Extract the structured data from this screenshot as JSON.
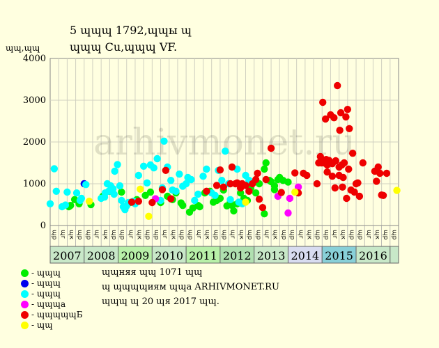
{
  "title_line1": "5 ɰɰɰ 1792,ɰɰы ɰ",
  "title_line2": "ɰɰɰ Cu,ɰɰɰ VF.",
  "watermark": "arhivmonet.ru",
  "legend": [
    {
      "label": "- ɰɰɰ",
      "color": "#00ee00"
    },
    {
      "label": "- ɰɰɰ",
      "color": "#0000ee"
    },
    {
      "label": "- ɰɰɰ",
      "color": "#00ffff"
    },
    {
      "label": "- ɰɰɰa",
      "color": "#ff00ff"
    },
    {
      "label": "- ɰɰɰɰɰБ",
      "color": "#ee0000"
    },
    {
      "label": "- ɰɰ",
      "color": "#ffff00"
    }
  ],
  "notes": [
    "ɰɰняя ɰɰ 1071 ɰɰ",
    "ɰ ɰɰɰɰиям ɰɰa ARHIVMONET.RU",
    "ɰɰɰ ɰ 20 ɰя 2017 ɰɰ."
  ],
  "chart_data": {
    "type": "scatter",
    "ylabel": "ɰɰ,ɰɰ",
    "ylim": [
      0,
      4000
    ],
    "yticks": [
      0,
      1000,
      2000,
      3000,
      4000
    ],
    "xlim": [
      2007,
      2017.25
    ],
    "year_labels": [
      "2007",
      "2008",
      "2009",
      "2010",
      "2011",
      "2012",
      "2013",
      "2014",
      "2015",
      "2016"
    ],
    "year_colors": [
      "#c8e8c8",
      "#c8e8c8",
      "#b8f0a8",
      "#c8e8c8",
      "#b8f0a8",
      "#b0e0b0",
      "#c8e8c8",
      "#d8dcf0",
      "#88d0d8",
      "#c8e8c8"
    ],
    "quarter_labels": [
      "ɰр",
      "ɰr",
      "ɰк",
      "ɰр"
    ],
    "grid": true,
    "series": [
      {
        "name": "- ɰɰɰ",
        "color": "#00ee00",
        "points": [
          [
            2007.55,
            450
          ],
          [
            2007.6,
            480
          ],
          [
            2007.72,
            620
          ],
          [
            2007.85,
            520
          ],
          [
            2008.2,
            500
          ],
          [
            2008.55,
            700
          ],
          [
            2008.75,
            820
          ],
          [
            2009.1,
            800
          ],
          [
            2009.35,
            550
          ],
          [
            2009.55,
            620
          ],
          [
            2009.8,
            720
          ],
          [
            2009.95,
            800
          ],
          [
            2010.25,
            550
          ],
          [
            2010.45,
            700
          ],
          [
            2010.6,
            620
          ],
          [
            2010.7,
            780
          ],
          [
            2010.85,
            540
          ],
          [
            2010.9,
            480
          ],
          [
            2011.1,
            320
          ],
          [
            2011.2,
            420
          ],
          [
            2011.35,
            480
          ],
          [
            2011.4,
            450
          ],
          [
            2011.55,
            780
          ],
          [
            2011.7,
            820
          ],
          [
            2011.8,
            560
          ],
          [
            2011.9,
            600
          ],
          [
            2012.0,
            650
          ],
          [
            2012.1,
            850
          ],
          [
            2012.2,
            470
          ],
          [
            2012.3,
            560
          ],
          [
            2012.35,
            480
          ],
          [
            2012.4,
            350
          ],
          [
            2012.5,
            520
          ],
          [
            2012.6,
            780
          ],
          [
            2012.7,
            650
          ],
          [
            2012.8,
            600
          ],
          [
            2012.9,
            900
          ],
          [
            2013.05,
            780
          ],
          [
            2013.15,
            1000
          ],
          [
            2013.3,
            1350
          ],
          [
            2013.35,
            1500
          ],
          [
            2013.45,
            1080
          ],
          [
            2013.5,
            1050
          ],
          [
            2013.6,
            950
          ],
          [
            2013.7,
            1100
          ],
          [
            2013.75,
            1150
          ],
          [
            2013.85,
            1080
          ],
          [
            2014.0,
            1040
          ],
          [
            2013.3,
            280
          ],
          [
            2013.6,
            860
          ]
        ]
      },
      {
        "name": "- ɰɰɰ",
        "color": "#0000ee",
        "points": [
          [
            2008.0,
            1000
          ]
        ]
      },
      {
        "name": "- ɰɰɰ",
        "color": "#00ffff",
        "points": [
          [
            2007.0,
            520
          ],
          [
            2007.12,
            1360
          ],
          [
            2007.18,
            820
          ],
          [
            2007.35,
            450
          ],
          [
            2007.45,
            490
          ],
          [
            2007.5,
            800
          ],
          [
            2007.78,
            780
          ],
          [
            2007.88,
            600
          ],
          [
            2007.92,
            650
          ],
          [
            2008.05,
            980
          ],
          [
            2008.5,
            650
          ],
          [
            2008.6,
            680
          ],
          [
            2008.62,
            780
          ],
          [
            2008.68,
            1000
          ],
          [
            2008.72,
            820
          ],
          [
            2008.78,
            950
          ],
          [
            2008.85,
            880
          ],
          [
            2008.88,
            750
          ],
          [
            2008.9,
            1300
          ],
          [
            2008.98,
            1460
          ],
          [
            2009.05,
            950
          ],
          [
            2009.1,
            600
          ],
          [
            2009.15,
            450
          ],
          [
            2009.2,
            380
          ],
          [
            2009.25,
            470
          ],
          [
            2009.3,
            550
          ],
          [
            2009.45,
            580
          ],
          [
            2009.5,
            520
          ],
          [
            2009.6,
            1200
          ],
          [
            2009.75,
            1420
          ],
          [
            2009.85,
            1020
          ],
          [
            2009.95,
            1450
          ],
          [
            2010.05,
            1380
          ],
          [
            2010.15,
            1600
          ],
          [
            2010.25,
            600
          ],
          [
            2010.3,
            900
          ],
          [
            2010.35,
            2020
          ],
          [
            2010.45,
            1400
          ],
          [
            2010.55,
            1080
          ],
          [
            2010.6,
            850
          ],
          [
            2010.7,
            820
          ],
          [
            2010.8,
            1230
          ],
          [
            2010.9,
            940
          ],
          [
            2011.0,
            1000
          ],
          [
            2011.05,
            1150
          ],
          [
            2011.15,
            1100
          ],
          [
            2011.25,
            600
          ],
          [
            2011.35,
            750
          ],
          [
            2011.5,
            1180
          ],
          [
            2011.6,
            1350
          ],
          [
            2011.75,
            780
          ],
          [
            2011.85,
            720
          ],
          [
            2011.95,
            1320
          ],
          [
            2012.05,
            1080
          ],
          [
            2012.15,
            1780
          ],
          [
            2012.25,
            1000
          ],
          [
            2012.3,
            620
          ],
          [
            2012.5,
            1350
          ],
          [
            2012.55,
            560
          ],
          [
            2012.65,
            520
          ],
          [
            2012.75,
            1200
          ],
          [
            2012.85,
            1080
          ]
        ]
      },
      {
        "name": "- ɰɰɰa",
        "color": "#ff00ff",
        "points": [
          [
            2010.1,
            640
          ],
          [
            2013.7,
            700
          ],
          [
            2014.0,
            300
          ],
          [
            2014.05,
            650
          ],
          [
            2014.3,
            920
          ]
        ]
      },
      {
        "name": "- ɰɰɰɰɰБ",
        "color": "#ee0000",
        "points": [
          [
            2009.4,
            560
          ],
          [
            2009.6,
            580
          ],
          [
            2010.0,
            550
          ],
          [
            2010.3,
            860
          ],
          [
            2010.4,
            1320
          ],
          [
            2010.55,
            640
          ],
          [
            2011.6,
            820
          ],
          [
            2011.9,
            960
          ],
          [
            2012.0,
            1330
          ],
          [
            2012.1,
            920
          ],
          [
            2012.3,
            1000
          ],
          [
            2012.35,
            1400
          ],
          [
            2012.45,
            1000
          ],
          [
            2012.5,
            1020
          ],
          [
            2012.6,
            900
          ],
          [
            2012.65,
            1000
          ],
          [
            2012.75,
            960
          ],
          [
            2012.85,
            820
          ],
          [
            2012.95,
            1000
          ],
          [
            2013.05,
            1100
          ],
          [
            2013.1,
            1250
          ],
          [
            2013.15,
            630
          ],
          [
            2013.25,
            430
          ],
          [
            2013.35,
            1100
          ],
          [
            2013.5,
            1850
          ],
          [
            2013.8,
            790
          ],
          [
            2014.2,
            1260
          ],
          [
            2014.3,
            780
          ],
          [
            2014.45,
            1250
          ],
          [
            2014.55,
            1200
          ],
          [
            2014.85,
            1000
          ],
          [
            2014.9,
            1500
          ],
          [
            2014.95,
            1650
          ],
          [
            2014.98,
            1500
          ],
          [
            2015.02,
            2950
          ],
          [
            2015.05,
            1500
          ],
          [
            2015.1,
            2550
          ],
          [
            2015.12,
            1580
          ],
          [
            2015.15,
            1450
          ],
          [
            2015.2,
            1560
          ],
          [
            2015.25,
            2650
          ],
          [
            2015.3,
            1480
          ],
          [
            2015.35,
            2580
          ],
          [
            2015.38,
            900
          ],
          [
            2015.4,
            1550
          ],
          [
            2015.45,
            3350
          ],
          [
            2015.5,
            1400
          ],
          [
            2015.52,
            2280
          ],
          [
            2015.55,
            2700
          ],
          [
            2015.58,
            1450
          ],
          [
            2015.6,
            920
          ],
          [
            2015.62,
            1150
          ],
          [
            2015.65,
            1500
          ],
          [
            2015.7,
            2600
          ],
          [
            2015.72,
            650
          ],
          [
            2015.75,
            2780
          ],
          [
            2015.78,
            1350
          ],
          [
            2015.8,
            2320
          ],
          [
            2015.85,
            850
          ],
          [
            2015.9,
            1730
          ],
          [
            2015.95,
            800
          ],
          [
            2016.0,
            1000
          ],
          [
            2016.05,
            1020
          ],
          [
            2016.1,
            700
          ],
          [
            2016.2,
            1500
          ],
          [
            2016.55,
            1300
          ],
          [
            2016.6,
            1060
          ],
          [
            2016.65,
            1400
          ],
          [
            2016.7,
            1250
          ],
          [
            2016.75,
            730
          ],
          [
            2016.8,
            720
          ],
          [
            2016.9,
            1250
          ],
          [
            2015.3,
            1180
          ],
          [
            2015.5,
            1200
          ],
          [
            2015.15,
            1280
          ]
        ]
      },
      {
        "name": "- ɰɰ",
        "color": "#ffff00",
        "points": [
          [
            2008.15,
            580
          ],
          [
            2009.65,
            870
          ],
          [
            2009.9,
            220
          ],
          [
            2012.75,
            560
          ],
          [
            2014.2,
            800
          ],
          [
            2017.2,
            840
          ]
        ]
      }
    ]
  }
}
